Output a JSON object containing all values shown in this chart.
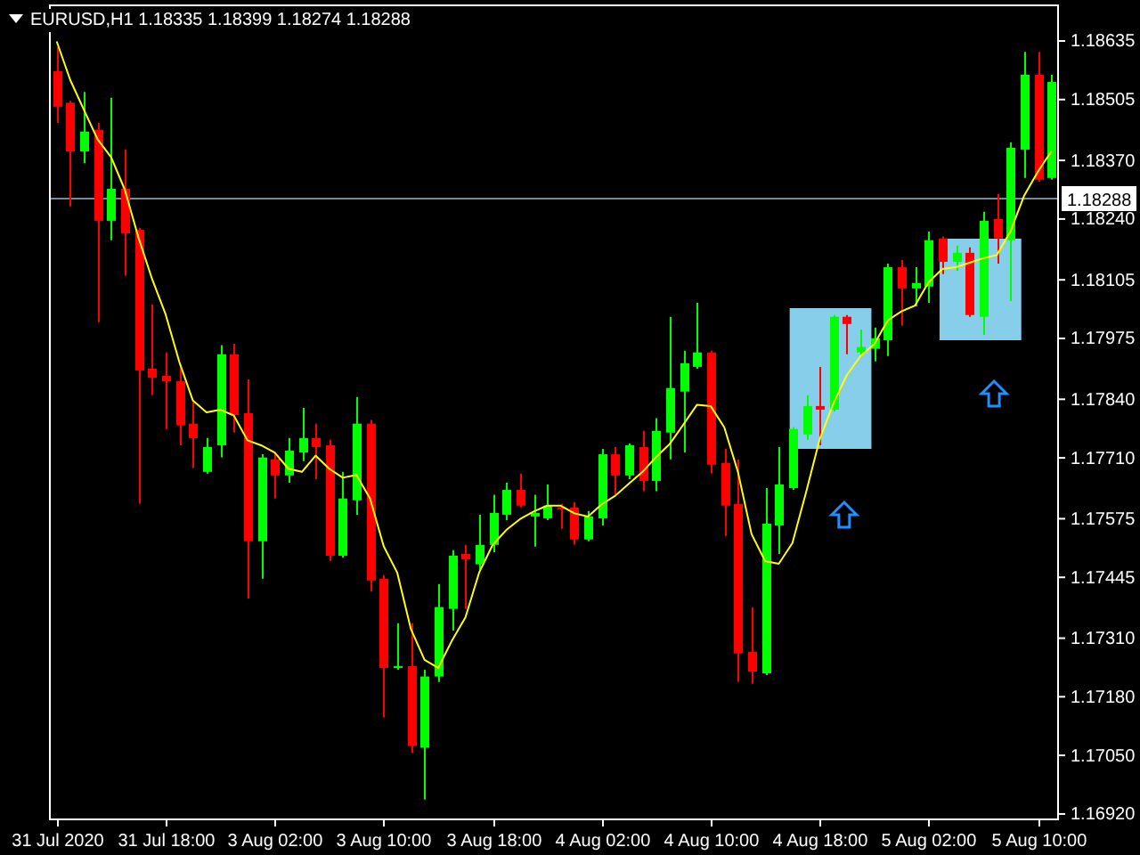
{
  "chart_data": {
    "type": "candlestick",
    "title": "EURUSD,H1 1.18335 1.18399 1.18274 1.18288",
    "categories": [
      "31 Jul 2020",
      null,
      null,
      null,
      null,
      null,
      null,
      null,
      "31 Jul 18:00",
      null,
      null,
      null,
      null,
      null,
      null,
      null,
      "3 Aug 02:00",
      null,
      null,
      null,
      null,
      null,
      null,
      null,
      "3 Aug 10:00",
      null,
      null,
      null,
      null,
      null,
      null,
      null,
      "3 Aug 18:00",
      null,
      null,
      null,
      null,
      null,
      null,
      null,
      "4 Aug 02:00",
      null,
      null,
      null,
      null,
      null,
      null,
      null,
      "4 Aug 10:00",
      null,
      null,
      null,
      null,
      null,
      null,
      null,
      "4 Aug 18:00",
      null,
      null,
      null,
      null,
      null,
      null,
      null,
      "5 Aug 02:00",
      null,
      null,
      null,
      null,
      null,
      null,
      null,
      "5 Aug 10:00",
      null
    ],
    "ohlc": [
      [
        1.18568,
        1.18621,
        1.18453,
        1.18489
      ],
      [
        1.18498,
        1.18502,
        1.18268,
        1.1839
      ],
      [
        1.1839,
        1.18522,
        1.18364,
        1.18434
      ],
      [
        1.18438,
        1.18453,
        1.18011,
        1.18236
      ],
      [
        1.18236,
        1.18509,
        1.18193,
        1.18307
      ],
      [
        1.18307,
        1.18394,
        1.18114,
        1.18208
      ],
      [
        1.18216,
        1.1822,
        1.17608,
        1.17904
      ],
      [
        1.17908,
        1.1805,
        1.17849,
        1.17888
      ],
      [
        1.17892,
        1.17944,
        1.17774,
        1.1788
      ],
      [
        1.1788,
        1.17916,
        1.17738,
        1.17782
      ],
      [
        1.17786,
        1.17833,
        1.17687,
        1.17754
      ],
      [
        1.17679,
        1.17754,
        1.17675,
        1.17734
      ],
      [
        1.17738,
        1.1796,
        1.17711,
        1.1794
      ],
      [
        1.1794,
        1.17963,
        1.17766,
        1.17805
      ],
      [
        1.17809,
        1.17884,
        1.17398,
        1.17525
      ],
      [
        1.17525,
        1.17718,
        1.17442,
        1.17711
      ],
      [
        1.17707,
        1.17722,
        1.1762,
        1.17671
      ],
      [
        1.17671,
        1.17754,
        1.17655,
        1.17726
      ],
      [
        1.17722,
        1.17821,
        1.17703,
        1.17754
      ],
      [
        1.17754,
        1.17786,
        1.17663,
        1.17734
      ],
      [
        1.17738,
        1.1775,
        1.17481,
        1.17493
      ],
      [
        1.17493,
        1.17679,
        1.17489,
        1.1762
      ],
      [
        1.17616,
        1.17845,
        1.17584,
        1.17786
      ],
      [
        1.17786,
        1.17794,
        1.17414,
        1.17438
      ],
      [
        1.17442,
        1.1745,
        1.17134,
        1.17244
      ],
      [
        1.17244,
        1.17343,
        1.1724,
        1.17248
      ],
      [
        1.17248,
        1.17343,
        1.17055,
        1.17071
      ],
      [
        1.17067,
        1.1724,
        1.16952,
        1.17225
      ],
      [
        1.17225,
        1.1743,
        1.17213,
        1.17379
      ],
      [
        1.17375,
        1.17505,
        1.17327,
        1.17493
      ],
      [
        1.17497,
        1.17517,
        1.17375,
        1.17485
      ],
      [
        1.17474,
        1.17584,
        1.17462,
        1.17517
      ],
      [
        1.17517,
        1.17628,
        1.17501,
        1.17588
      ],
      [
        1.17584,
        1.17655,
        1.17572,
        1.17639
      ],
      [
        1.17639,
        1.17675,
        1.176,
        1.17604
      ],
      [
        1.1758,
        1.17628,
        1.17513,
        1.17588
      ],
      [
        1.17576,
        1.17651,
        1.17572,
        1.17604
      ],
      [
        1.176,
        1.17608,
        1.17553,
        1.17596
      ],
      [
        1.176,
        1.17612,
        1.17517,
        1.17529
      ],
      [
        1.17529,
        1.17592,
        1.17525,
        1.1758
      ],
      [
        1.17576,
        1.1773,
        1.1756,
        1.17718
      ],
      [
        1.17718,
        1.17734,
        1.17628,
        1.17671
      ],
      [
        1.17671,
        1.17742,
        1.17663,
        1.17738
      ],
      [
        1.17734,
        1.1777,
        1.17636,
        1.17659
      ],
      [
        1.17659,
        1.17798,
        1.17636,
        1.1777
      ],
      [
        1.17766,
        1.18023,
        1.17707,
        1.17865
      ],
      [
        1.17857,
        1.17948,
        1.17722,
        1.1792
      ],
      [
        1.17912,
        1.18054,
        1.17908,
        1.17944
      ],
      [
        1.17944,
        1.17948,
        1.17675,
        1.17695
      ],
      [
        1.17699,
        1.1773,
        1.17537,
        1.17604
      ],
      [
        1.17608,
        1.17707,
        1.17213,
        1.17276
      ],
      [
        1.1728,
        1.17379,
        1.17209,
        1.17236
      ],
      [
        1.17232,
        1.17643,
        1.17228,
        1.17564
      ],
      [
        1.1756,
        1.17734,
        1.17497,
        1.17651
      ],
      [
        1.17643,
        1.17778,
        1.17639,
        1.17774
      ],
      [
        1.17762,
        1.17849,
        1.1775,
        1.17825
      ],
      [
        1.17825,
        1.17912,
        1.17738,
        1.17817
      ],
      [
        1.17817,
        1.18027,
        1.17813,
        1.18023
      ],
      [
        1.18023,
        1.18027,
        1.1794,
        1.18007
      ],
      [
        1.17944,
        1.17995,
        1.17936,
        1.17956
      ],
      [
        1.17952,
        1.17999,
        1.17924,
        1.17975
      ],
      [
        1.17971,
        1.18141,
        1.17936,
        1.18133
      ],
      [
        1.18133,
        1.18149,
        1.18003,
        1.18086
      ],
      [
        1.18086,
        1.18133,
        1.18046,
        1.18098
      ],
      [
        1.1809,
        1.18212,
        1.18054,
        1.18193
      ],
      [
        1.18197,
        1.18201,
        1.18118,
        1.18145
      ],
      [
        1.18145,
        1.18181,
        1.18125,
        1.18165
      ],
      [
        1.18165,
        1.18177,
        1.18023,
        1.18027
      ],
      [
        1.18023,
        1.18256,
        1.17983,
        1.18236
      ],
      [
        1.1824,
        1.18295,
        1.18141,
        1.18197
      ],
      [
        1.18193,
        1.1841,
        1.18058,
        1.18398
      ],
      [
        1.18394,
        1.18611,
        1.18331,
        1.1856
      ],
      [
        1.1856,
        1.18611,
        1.18323,
        1.18327
      ],
      [
        1.18331,
        1.1856,
        1.18327,
        1.18544
      ]
    ],
    "colors": [
      "#ff0000",
      "#ff0000",
      "#00ff00",
      "#ff0000",
      "#00ff00",
      "#ff0000",
      "#ff0000",
      "#ff0000",
      "#ff0000",
      "#ff0000",
      "#ff0000",
      "#00ff00",
      "#00ff00",
      "#ff0000",
      "#ff0000",
      "#00ff00",
      "#ff0000",
      "#00ff00",
      "#00ff00",
      "#ff0000",
      "#ff0000",
      "#00ff00",
      "#00ff00",
      "#ff0000",
      "#ff0000",
      "#00ff00",
      "#ff0000",
      "#00ff00",
      "#00ff00",
      "#00ff00",
      "#ff0000",
      "#00ff00",
      "#00ff00",
      "#00ff00",
      "#ff0000",
      "#00ff00",
      "#00ff00",
      "#ff0000",
      "#ff0000",
      "#00ff00",
      "#00ff00",
      "#ff0000",
      "#00ff00",
      "#ff0000",
      "#00ff00",
      "#00ff00",
      "#00ff00",
      "#00ff00",
      "#ff0000",
      "#ff0000",
      "#ff0000",
      "#ff0000",
      "#00ff00",
      "#00ff00",
      "#00ff00",
      "#00ff00",
      "#ff0000",
      "#00ff00",
      "#ff0000",
      "#00ff00",
      "#00ff00",
      "#00ff00",
      "#ff0000",
      "#00ff00",
      "#00ff00",
      "#ff0000",
      "#00ff00",
      "#ff0000",
      "#00ff00",
      "#ff0000",
      "#00ff00",
      "#00ff00",
      "#ff0000",
      "#00ff00"
    ],
    "series": [
      {
        "type": "line",
        "color": "#ffff00",
        "values": [
          1.18634,
          1.18548,
          1.18482,
          1.18417,
          1.18377,
          1.18305,
          1.18199,
          1.18107,
          1.18028,
          1.17923,
          1.17837,
          1.17811,
          1.17817,
          1.17804,
          1.17749,
          1.17738,
          1.17722,
          1.17686,
          1.17679,
          1.17715,
          1.17686,
          1.17666,
          1.17672,
          1.1762,
          1.17514,
          1.17455,
          1.1733,
          1.17262,
          1.17244,
          1.17304,
          1.17356,
          1.17455,
          1.17517,
          1.1755,
          1.17574,
          1.17591,
          1.17604,
          1.17604,
          1.17587,
          1.1758,
          1.17607,
          1.17626,
          1.17653,
          1.17679,
          1.17712,
          1.17741,
          1.17784,
          1.17828,
          1.17825,
          1.17778,
          1.17679,
          1.17541,
          1.17481,
          1.17475,
          1.17521,
          1.17633,
          1.17751,
          1.1783,
          1.17894,
          1.17936,
          1.17962,
          1.18015,
          1.18035,
          1.18048,
          1.181,
          1.18129,
          1.18133,
          1.18143,
          1.18153,
          1.1816,
          1.18212,
          1.18291,
          1.18344,
          1.1839
        ]
      }
    ],
    "ylim": [
      1.16908,
      1.18714
    ],
    "yticks": [
      1.18635,
      1.18505,
      {
        "value": 1.1837,
        "label": "1.18370"
      },
      {
        "value": 1.1824,
        "label": "1.18240"
      },
      1.18105,
      1.17975,
      {
        "value": 1.1784,
        "label": "1.17840"
      },
      {
        "value": 1.1771,
        "label": "1.17710"
      },
      1.17575,
      1.17445,
      {
        "value": 1.1731,
        "label": "1.17310"
      },
      {
        "value": 1.1718,
        "label": "1.17180"
      },
      {
        "value": 1.1705,
        "label": "1.17050"
      },
      {
        "value": 1.1692,
        "label": "1.16920"
      }
    ],
    "ref_lines": [
      {
        "axis": "y",
        "value": 1.18288,
        "label": "1.18288",
        "color": "#778899"
      }
    ]
  }
}
